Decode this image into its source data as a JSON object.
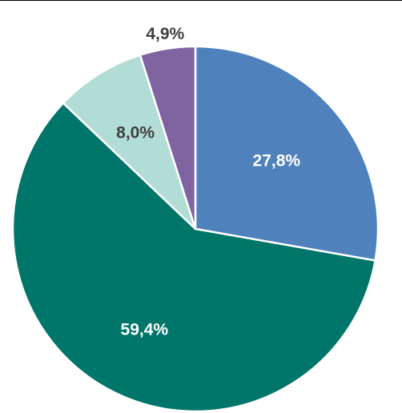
{
  "chart_data": {
    "type": "pie",
    "title": "",
    "start_angle_deg": 0,
    "direction": "clockwise",
    "slices": [
      {
        "label": "27,8%",
        "value": 27.8,
        "color": "#4f81bd",
        "label_color": "#ffffff"
      },
      {
        "label": "59,4%",
        "value": 59.4,
        "color": "#00766a",
        "label_color": "#ffffff"
      },
      {
        "label": "8,0%",
        "value": 8.0,
        "color": "#b2dcd6",
        "label_color": "#404040"
      },
      {
        "label": "4,9%",
        "value": 4.9,
        "color": "#8064a2",
        "label_color": "#404040"
      }
    ],
    "legend": "none"
  }
}
